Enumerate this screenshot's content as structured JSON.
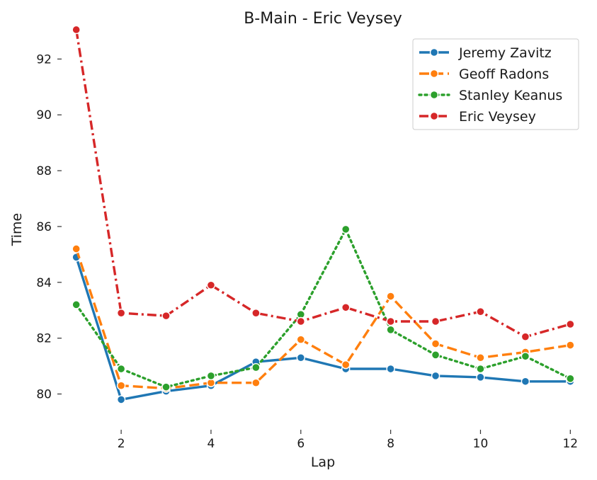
{
  "chart_data": {
    "type": "line",
    "title": "B-Main - Eric Veysey",
    "xlabel": "Lap",
    "ylabel": "Time",
    "xlim": [
      0.8,
      12.2
    ],
    "ylim": [
      79.1,
      93.1
    ],
    "xticks": [
      2,
      4,
      6,
      8,
      10,
      12
    ],
    "yticks": [
      80,
      82,
      84,
      86,
      88,
      90,
      92
    ],
    "grid": false,
    "legend_position": "top-right",
    "x": [
      1,
      2,
      3,
      4,
      5,
      6,
      7,
      8,
      9,
      10,
      11,
      12
    ],
    "series": [
      {
        "name": "Jeremy Zavitz",
        "color": "#1f77b4",
        "style": "solid",
        "values": [
          84.9,
          79.8,
          80.1,
          80.3,
          81.15,
          81.3,
          80.9,
          80.9,
          80.65,
          80.6,
          80.45,
          80.45
        ]
      },
      {
        "name": "Geoff Radons",
        "color": "#ff7f0e",
        "style": "dashed",
        "values": [
          85.2,
          80.3,
          80.2,
          80.4,
          80.4,
          81.95,
          81.05,
          83.5,
          81.8,
          81.3,
          81.5,
          81.75
        ]
      },
      {
        "name": "Stanley Keanus",
        "color": "#2ca02c",
        "style": "dotted",
        "values": [
          83.2,
          80.9,
          80.25,
          80.65,
          80.95,
          82.85,
          85.9,
          82.3,
          81.4,
          80.9,
          81.35,
          80.55
        ]
      },
      {
        "name": "Eric Veysey",
        "color": "#d62728",
        "style": "dashdot",
        "values": [
          93.05,
          82.9,
          82.8,
          83.9,
          82.9,
          82.6,
          83.1,
          82.6,
          82.6,
          82.95,
          82.05,
          82.5
        ]
      }
    ]
  }
}
